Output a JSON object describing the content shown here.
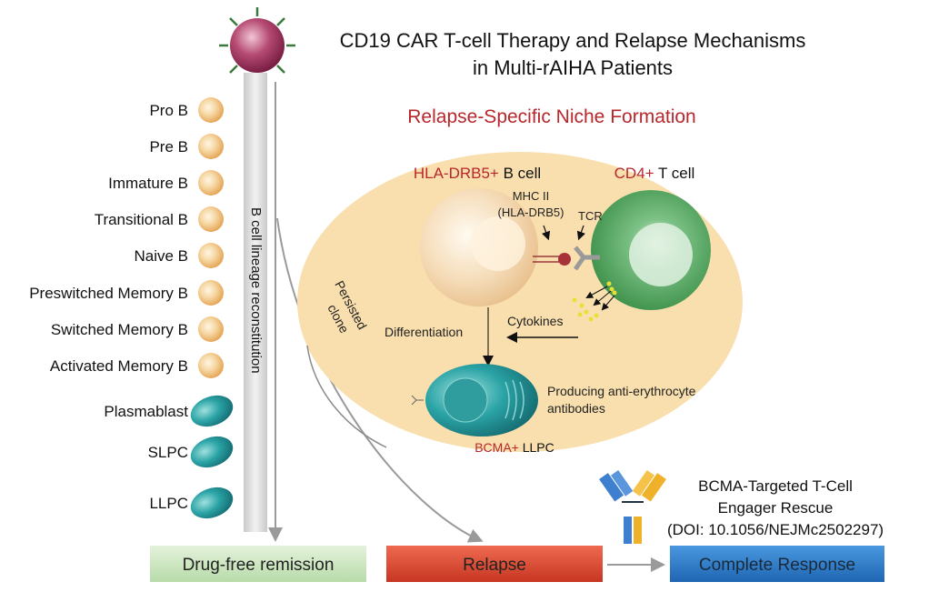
{
  "title": {
    "line1": "CD19 CAR T-cell Therapy and Relapse Mechanisms",
    "line2": "in Multi-rAIHA Patients"
  },
  "lineage": {
    "stages": [
      "Pro B",
      "Pre B",
      "Immature B",
      "Transitional B",
      "Naive B",
      "Preswitched Memory B",
      "Switched Memory B",
      "Activated Memory B"
    ],
    "plasma_cells": [
      "Plasmablast",
      "SLPC",
      "LLPC"
    ],
    "bar_label": "B cell lineage reconstitution"
  },
  "niche": {
    "title": "Relapse-Specific Niche Formation",
    "b_cell": {
      "marker": "HLA-DRB5+",
      "label": " B cell"
    },
    "t_cell": {
      "marker": "CD4+",
      "label": " T cell"
    },
    "mhc": {
      "line1": "MHC II",
      "line2": "(HLA-DRB5)"
    },
    "tcr": "TCR",
    "persisted": {
      "line1": "Persisted",
      "line2": "clone"
    },
    "differentiation": "Differentiation",
    "cytokines": "Cytokines",
    "producing": {
      "line1": "Producing anti-erythrocyte",
      "line2": "antibodies"
    },
    "llpc": {
      "marker": "BCMA+",
      "label": " LLPC"
    }
  },
  "rescue": {
    "line1": "BCMA-Targeted T-Cell",
    "line2": "Engager Rescue",
    "line3": "(DOI: 10.1056/NEJMc2502297)"
  },
  "outcomes": {
    "remission": "Drug-free remission",
    "relapse": "Relapse",
    "complete": "Complete Response"
  },
  "colors": {
    "accent_red": "#b8272c",
    "niche_fill": "#f9dfae",
    "remission": "#cfe8c5",
    "relapse": "#d9432e",
    "complete": "#2a78c7",
    "plasma": "#2a9ea0",
    "t_cell": "#4ea45c"
  }
}
